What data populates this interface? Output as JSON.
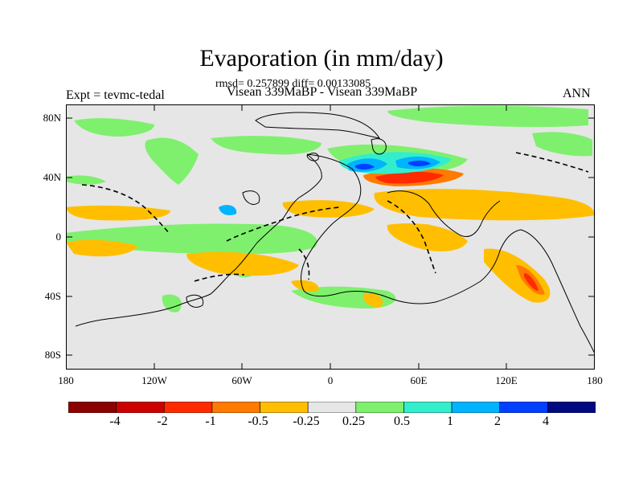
{
  "title": "Evaporation (in mm/day)",
  "subtitle": "rmsd= 0.257899 diff= 0.00133085",
  "left_label": "Expt = tevmc-tedal",
  "center_label": "Visean 339MaBP - Visean 339MaBP",
  "right_label": "ANN",
  "lat_ticks": [
    "80N",
    "40N",
    "0",
    "40S",
    "80S"
  ],
  "lon_ticks": [
    "180",
    "120W",
    "60W",
    "0",
    "60E",
    "120E",
    "180"
  ],
  "colorbar": {
    "labels": [
      "-4",
      "-2",
      "-1",
      "-0.5",
      "-0.25",
      "0.25",
      "0.5",
      "1",
      "2",
      "4"
    ],
    "colors": [
      "#8b0000",
      "#cc0000",
      "#ff2a00",
      "#ff7a00",
      "#ffbf00",
      "#e6e6e6",
      "#7ff06e",
      "#33eecc",
      "#00b4ff",
      "#0040ff",
      "#000a80"
    ]
  },
  "chart_data": {
    "type": "heatmap",
    "variable": "Evaporation difference",
    "units": "mm/day",
    "season": "ANN",
    "projection": "cylindrical equidistant",
    "xlim": [
      -180,
      180
    ],
    "ylim": [
      -90,
      90
    ],
    "levels": [
      -4,
      -2,
      -1,
      -0.5,
      -0.25,
      0.25,
      0.5,
      1,
      2,
      4
    ],
    "rmsd": 0.257899,
    "diff": 0.00133085
  }
}
